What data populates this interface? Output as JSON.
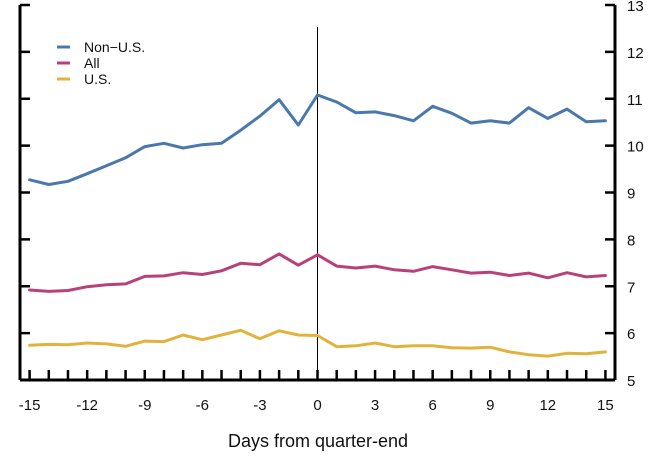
{
  "chart_data": {
    "type": "line",
    "title": "",
    "xlabel": "Days from quarter-end",
    "ylabel": "",
    "x": [
      -15,
      -14,
      -13,
      -12,
      -11,
      -10,
      -9,
      -8,
      -7,
      -6,
      -5,
      -4,
      -3,
      -2,
      -1,
      0,
      1,
      2,
      3,
      4,
      5,
      6,
      7,
      8,
      9,
      10,
      11,
      12,
      13,
      14,
      15
    ],
    "xlim": [
      -15.5,
      15.5
    ],
    "xticks": [
      -15,
      -12,
      -9,
      -6,
      -3,
      0,
      3,
      6,
      9,
      12,
      15
    ],
    "xtick_labels": [
      "-15",
      "-12",
      "-9",
      "-6",
      "-3",
      "0",
      "3",
      "6",
      "9",
      "12",
      "15"
    ],
    "ylim": [
      5,
      13
    ],
    "yticks": [
      5,
      6,
      7,
      8,
      9,
      10,
      11,
      12,
      13
    ],
    "ytick_labels": [
      "5",
      "6",
      "7",
      "8",
      "9",
      "10",
      "11",
      "12",
      "13"
    ],
    "yaxis_side": "right",
    "vertical_line_at": 0,
    "legend": "top-left",
    "grid": false,
    "series": [
      {
        "name": "Non−U.S.",
        "color": "#4a78ad",
        "values": [
          9.27,
          9.17,
          9.24,
          9.4,
          9.57,
          9.74,
          9.98,
          10.05,
          9.95,
          10.02,
          10.05,
          10.33,
          10.63,
          10.98,
          10.44,
          11.08,
          10.93,
          10.7,
          10.72,
          10.64,
          10.53,
          10.84,
          10.69,
          10.48,
          10.53,
          10.48,
          10.81,
          10.58,
          10.78,
          10.51,
          10.53
        ]
      },
      {
        "name": "All",
        "color": "#b8417a",
        "values": [
          6.92,
          6.89,
          6.91,
          6.99,
          7.03,
          7.05,
          7.21,
          7.22,
          7.29,
          7.25,
          7.33,
          7.49,
          7.46,
          7.69,
          7.45,
          7.67,
          7.43,
          7.39,
          7.43,
          7.35,
          7.32,
          7.42,
          7.35,
          7.28,
          7.3,
          7.23,
          7.28,
          7.18,
          7.29,
          7.2,
          7.23
        ]
      },
      {
        "name": "U.S.",
        "color": "#e2b33c",
        "values": [
          5.74,
          5.76,
          5.75,
          5.79,
          5.77,
          5.72,
          5.83,
          5.82,
          5.96,
          5.86,
          5.96,
          6.06,
          5.88,
          6.05,
          5.96,
          5.95,
          5.71,
          5.73,
          5.79,
          5.71,
          5.73,
          5.73,
          5.69,
          5.68,
          5.7,
          5.6,
          5.54,
          5.51,
          5.57,
          5.56,
          5.6
        ]
      }
    ]
  }
}
